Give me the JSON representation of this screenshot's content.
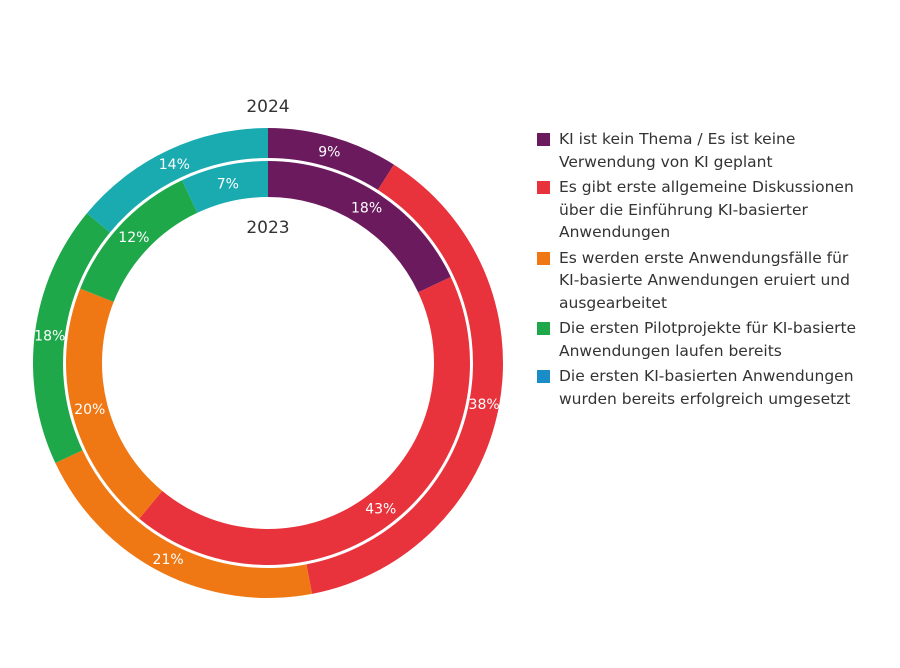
{
  "chart_data": {
    "type": "pie",
    "variant": "nested-donut",
    "categories": [
      "KI ist kein Thema / Es ist keine Verwendung von KI geplant",
      "Es gibt erste allgemeine Diskussionen über die Einführung KI-basierter Anwendungen",
      "Es werden erste Anwendungsfälle für KI-basierte Anwendungen eruiert und ausgearbeitet",
      "Die ersten Pilotprojekte für KI-basierte Anwendungen laufen bereits",
      "Die ersten KI-basierten Anwendungen wurden bereits erfolgreich umgesetzt"
    ],
    "colors": [
      "#6b1a5e",
      "#e8323c",
      "#f07814",
      "#1ea84a",
      "#1aabb0"
    ],
    "legend_colors": [
      "#6b1a5e",
      "#e8323c",
      "#f07814",
      "#1ea84a",
      "#1a8cc8"
    ],
    "series": [
      {
        "name": "2024",
        "ring": "outer",
        "values": [
          9,
          38,
          21,
          18,
          14
        ],
        "labels": [
          "9%",
          "38%",
          "21%",
          "18%",
          "14%"
        ]
      },
      {
        "name": "2023",
        "ring": "inner",
        "values": [
          18,
          43,
          20,
          12,
          7
        ],
        "labels": [
          "18%",
          "43%",
          "20%",
          "12%",
          "7%"
        ]
      }
    ],
    "legend_placement": "right"
  }
}
